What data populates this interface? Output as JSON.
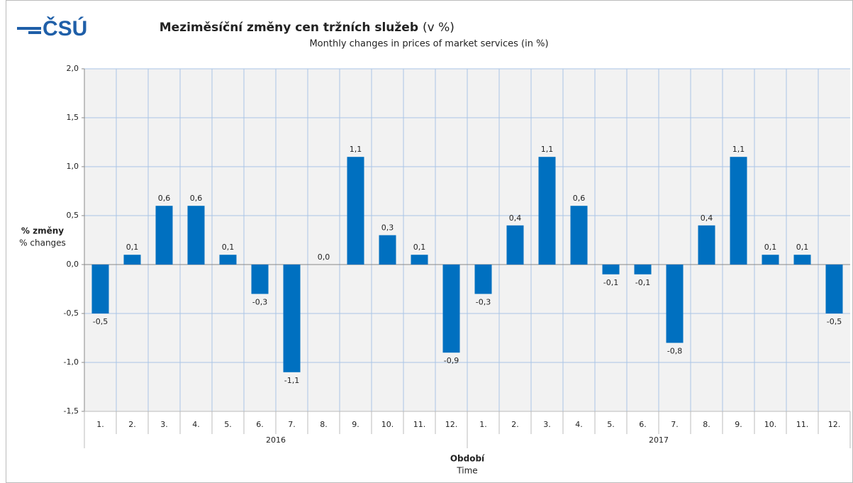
{
  "chart_data": {
    "type": "bar",
    "logo": "ČSÚ",
    "title": "Meziměsíční změny cen tržních služeb",
    "title_unit": "(v %)",
    "subtitle": "Monthly changes in prices of market services (in %)",
    "y_label": "% změny",
    "y_label_en": "% changes",
    "x_label": "Období",
    "x_label_en": "Time",
    "categories": [
      "1.",
      "2.",
      "3.",
      "4.",
      "5.",
      "6.",
      "7.",
      "8.",
      "9.",
      "10.",
      "11.",
      "12.",
      "1.",
      "2.",
      "3.",
      "4.",
      "5.",
      "6.",
      "7.",
      "8.",
      "9.",
      "10.",
      "11.",
      "12."
    ],
    "groups": [
      "2016",
      "2017"
    ],
    "values": [
      -0.5,
      0.1,
      0.6,
      0.6,
      0.1,
      -0.3,
      -1.1,
      0.0,
      1.1,
      0.3,
      0.1,
      -0.9,
      -0.3,
      0.4,
      1.1,
      0.6,
      -0.1,
      -0.1,
      -0.8,
      0.4,
      1.1,
      0.1,
      0.1,
      -0.5
    ],
    "value_labels": [
      "-0,5",
      "0,1",
      "0,6",
      "0,6",
      "0,1",
      "-0,3",
      "-1,1",
      "0,0",
      "1,1",
      "0,3",
      "0,1",
      "-0,9",
      "-0,3",
      "0,4",
      "1,1",
      "0,6",
      "-0,1",
      "-0,1",
      "-0,8",
      "0,4",
      "1,1",
      "0,1",
      "0,1",
      "-0,5"
    ],
    "color": "#0070c0",
    "ylim": [
      -1.5,
      2.0
    ],
    "yticks": [
      {
        "value": -1.5,
        "label": "-1,5"
      },
      {
        "value": -1.0,
        "label": "-1,0"
      },
      {
        "value": -0.5,
        "label": "-0,5"
      },
      {
        "value": 0.0,
        "label": "0,0"
      },
      {
        "value": 0.5,
        "label": "0,5"
      },
      {
        "value": 1.0,
        "label": "1,0"
      },
      {
        "value": 1.5,
        "label": "1,5"
      },
      {
        "value": 2.0,
        "label": "2,0"
      }
    ],
    "grid": true
  }
}
